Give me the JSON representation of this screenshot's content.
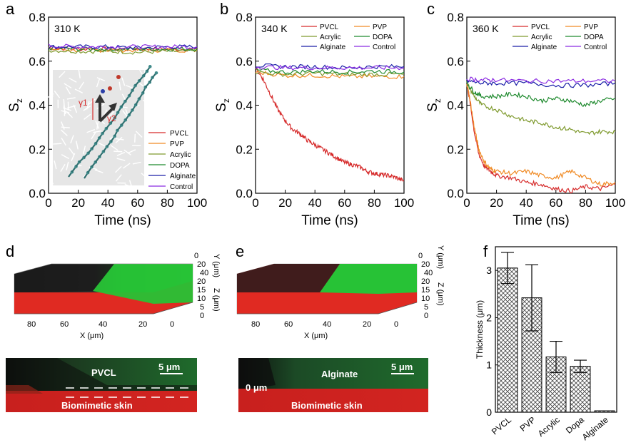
{
  "panels": {
    "a": "a",
    "b": "b",
    "c": "c",
    "d": "d",
    "e": "e",
    "f": "f"
  },
  "colors": {
    "PVCL": "#d62b2b",
    "PVP": "#f08a24",
    "Acrylic": "#7f9a2e",
    "DOPA": "#1f8a2e",
    "Alginate": "#1b1fa8",
    "Control": "#8b2be2"
  },
  "chart_data": [
    {
      "id": "a",
      "type": "line",
      "annotation": "310 K",
      "xlabel": "Time (ns)",
      "ylabel": "S",
      "ylabel_sub": "z",
      "xlim": [
        0,
        100
      ],
      "ylim": [
        0,
        0.8
      ],
      "xticks": [
        "0",
        "20",
        "40",
        "60",
        "80",
        "100"
      ],
      "yticks": [
        "0.0",
        "0.2",
        "0.4",
        "0.6",
        "0.8"
      ],
      "legend": [
        "PVCL",
        "PVP",
        "Acrylic",
        "DOPA",
        "Alginate",
        "Control"
      ],
      "inset_labels": [
        "γ1",
        "γ2"
      ],
      "series": [
        {
          "name": "PVCL",
          "x": [
            0,
            20,
            40,
            60,
            80,
            100
          ],
          "y": [
            0.66,
            0.655,
            0.655,
            0.655,
            0.655,
            0.655
          ]
        },
        {
          "name": "PVP",
          "x": [
            0,
            20,
            40,
            60,
            80,
            100
          ],
          "y": [
            0.655,
            0.65,
            0.65,
            0.65,
            0.65,
            0.65
          ]
        },
        {
          "name": "Acrylic",
          "x": [
            0,
            20,
            40,
            60,
            80,
            100
          ],
          "y": [
            0.65,
            0.645,
            0.645,
            0.64,
            0.645,
            0.645
          ]
        },
        {
          "name": "DOPA",
          "x": [
            0,
            20,
            40,
            60,
            80,
            100
          ],
          "y": [
            0.66,
            0.655,
            0.655,
            0.655,
            0.655,
            0.655
          ]
        },
        {
          "name": "Alginate",
          "x": [
            0,
            20,
            40,
            60,
            80,
            100
          ],
          "y": [
            0.665,
            0.665,
            0.665,
            0.66,
            0.665,
            0.665
          ]
        },
        {
          "name": "Control",
          "x": [
            0,
            20,
            40,
            60,
            80,
            100
          ],
          "y": [
            0.67,
            0.665,
            0.665,
            0.665,
            0.665,
            0.665
          ]
        }
      ]
    },
    {
      "id": "b",
      "type": "line",
      "annotation": "340 K",
      "xlabel": "Time (ns)",
      "ylabel": "S",
      "ylabel_sub": "z",
      "xlim": [
        0,
        100
      ],
      "ylim": [
        0,
        0.8
      ],
      "xticks": [
        "0",
        "20",
        "40",
        "60",
        "80",
        "100"
      ],
      "yticks": [
        "0.0",
        "0.2",
        "0.4",
        "0.6",
        "0.8"
      ],
      "legend": [
        "PVCL",
        "PVP",
        "Acrylic",
        "DOPA",
        "Alginate",
        "Control"
      ],
      "series": [
        {
          "name": "PVCL",
          "x": [
            0,
            5,
            10,
            15,
            20,
            25,
            30,
            35,
            40,
            45,
            50,
            55,
            60,
            65,
            70,
            75,
            80,
            85,
            90,
            95,
            100
          ],
          "y": [
            0.57,
            0.52,
            0.45,
            0.38,
            0.33,
            0.29,
            0.27,
            0.24,
            0.22,
            0.2,
            0.18,
            0.16,
            0.14,
            0.13,
            0.12,
            0.1,
            0.09,
            0.085,
            0.08,
            0.07,
            0.055
          ]
        },
        {
          "name": "PVP",
          "x": [
            0,
            20,
            40,
            60,
            80,
            100
          ],
          "y": [
            0.55,
            0.535,
            0.535,
            0.53,
            0.53,
            0.53
          ]
        },
        {
          "name": "Acrylic",
          "x": [
            0,
            20,
            40,
            60,
            80,
            100
          ],
          "y": [
            0.55,
            0.54,
            0.545,
            0.54,
            0.54,
            0.54
          ]
        },
        {
          "name": "DOPA",
          "x": [
            0,
            20,
            40,
            60,
            80,
            100
          ],
          "y": [
            0.56,
            0.55,
            0.555,
            0.55,
            0.555,
            0.55
          ]
        },
        {
          "name": "Alginate",
          "x": [
            0,
            20,
            40,
            60,
            80,
            100
          ],
          "y": [
            0.58,
            0.575,
            0.575,
            0.57,
            0.575,
            0.575
          ]
        },
        {
          "name": "Control",
          "x": [
            0,
            20,
            40,
            60,
            80,
            100
          ],
          "y": [
            0.575,
            0.57,
            0.57,
            0.57,
            0.57,
            0.57
          ]
        }
      ]
    },
    {
      "id": "c",
      "type": "line",
      "annotation": "360 K",
      "xlabel": "Time (ns)",
      "ylabel": "S",
      "ylabel_sub": "z",
      "xlim": [
        0,
        100
      ],
      "ylim": [
        0,
        0.8
      ],
      "xticks": [
        "0",
        "20",
        "40",
        "60",
        "80",
        "100"
      ],
      "yticks": [
        "0.0",
        "0.2",
        "0.4",
        "0.6",
        "0.8"
      ],
      "legend": [
        "PVCL",
        "PVP",
        "Acrylic",
        "DOPA",
        "Alginate",
        "Control"
      ],
      "series": [
        {
          "name": "PVCL",
          "x": [
            0,
            2,
            5,
            8,
            12,
            16,
            20,
            30,
            40,
            50,
            60,
            70,
            80,
            90,
            100
          ],
          "y": [
            0.5,
            0.42,
            0.28,
            0.18,
            0.12,
            0.1,
            0.08,
            0.07,
            0.05,
            0.04,
            0.02,
            0.01,
            0.03,
            0.02,
            0.04
          ]
        },
        {
          "name": "PVP",
          "x": [
            0,
            2,
            5,
            8,
            12,
            16,
            20,
            30,
            40,
            50,
            60,
            70,
            80,
            90,
            100
          ],
          "y": [
            0.5,
            0.43,
            0.3,
            0.2,
            0.14,
            0.11,
            0.1,
            0.09,
            0.1,
            0.08,
            0.07,
            0.1,
            0.07,
            0.04,
            0.05
          ]
        },
        {
          "name": "Acrylic",
          "x": [
            0,
            5,
            10,
            20,
            30,
            40,
            50,
            60,
            70,
            80,
            90,
            100
          ],
          "y": [
            0.5,
            0.44,
            0.4,
            0.38,
            0.35,
            0.33,
            0.32,
            0.3,
            0.29,
            0.27,
            0.28,
            0.28
          ]
        },
        {
          "name": "DOPA",
          "x": [
            0,
            5,
            10,
            20,
            30,
            40,
            50,
            60,
            70,
            80,
            90,
            100
          ],
          "y": [
            0.5,
            0.46,
            0.44,
            0.44,
            0.45,
            0.44,
            0.42,
            0.43,
            0.42,
            0.4,
            0.42,
            0.43
          ]
        },
        {
          "name": "Alginate",
          "x": [
            0,
            10,
            20,
            40,
            60,
            80,
            100
          ],
          "y": [
            0.51,
            0.5,
            0.5,
            0.5,
            0.49,
            0.49,
            0.5
          ]
        },
        {
          "name": "Control",
          "x": [
            0,
            10,
            20,
            40,
            60,
            80,
            100
          ],
          "y": [
            0.52,
            0.515,
            0.515,
            0.51,
            0.51,
            0.51,
            0.51
          ]
        }
      ]
    },
    {
      "id": "f",
      "type": "bar",
      "ylabel": "Thickness (μm)",
      "yticks": [
        "0",
        "1",
        "2",
        "3"
      ],
      "ylim": [
        0,
        3.5
      ],
      "categories": [
        "PVCL",
        "PVP",
        "Acrylic",
        "Dopa",
        "Alginate"
      ],
      "values": [
        3.05,
        2.42,
        1.17,
        0.97,
        0.03
      ],
      "errors": [
        0.33,
        0.7,
        0.33,
        0.13,
        0
      ]
    }
  ],
  "panel_d": {
    "axis_y": "Y (μm)",
    "axis_z": "Z (μm)",
    "axis_x": "X (μm)",
    "x_ticks": [
      "80",
      "60",
      "40",
      "20",
      "0"
    ],
    "y_ticks": [
      "0",
      "20",
      "40"
    ],
    "z_ticks": [
      "20",
      "15",
      "10",
      "5",
      "0"
    ],
    "coating": "PVCL",
    "skin": "Biomimetic skin",
    "scale": "5 μm"
  },
  "panel_e": {
    "axis_y": "Y (μm)",
    "axis_z": "Z (μm)",
    "axis_x": "X (μm)",
    "x_ticks": [
      "80",
      "60",
      "40",
      "20",
      "0"
    ],
    "y_ticks": [
      "0",
      "20",
      "40"
    ],
    "z_ticks": [
      "20",
      "15",
      "10",
      "5",
      "0"
    ],
    "coating": "Alginate",
    "skin": "Biomimetic skin",
    "scale": "5 μm",
    "zero_label": "0 μm"
  }
}
